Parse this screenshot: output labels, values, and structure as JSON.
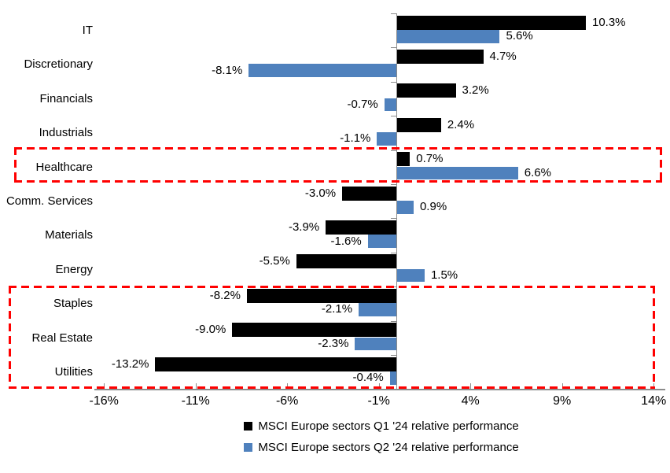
{
  "chart_data": {
    "type": "bar",
    "orientation": "horizontal",
    "title": "",
    "categories": [
      "IT",
      "Discretionary",
      "Financials",
      "Industrials",
      "Healthcare",
      "Comm. Services",
      "Materials",
      "Energy",
      "Staples",
      "Real Estate",
      "Utilities"
    ],
    "series": [
      {
        "name": "MSCI Europe sectors Q1 '24 relative performance",
        "color": "#000000",
        "values": [
          10.3,
          4.7,
          3.2,
          2.4,
          0.7,
          -3.0,
          -3.9,
          -5.5,
          -8.2,
          -9.0,
          -13.2
        ],
        "labels": [
          "10.3%",
          "4.7%",
          "3.2%",
          "2.4%",
          "0.7%",
          "-3.0%",
          "-3.9%",
          "-5.5%",
          "-8.2%",
          "-9.0%",
          "-13.2%"
        ]
      },
      {
        "name": "MSCI Europe sectors Q2 '24 relative performance",
        "color": "#4F81BD",
        "values": [
          5.6,
          -8.1,
          -0.7,
          -1.1,
          6.6,
          0.9,
          -1.6,
          1.5,
          -2.1,
          -2.3,
          -0.4
        ],
        "labels": [
          "5.6%",
          "-8.1%",
          "-0.7%",
          "-1.1%",
          "6.6%",
          "0.9%",
          "-1.6%",
          "1.5%",
          "-2.1%",
          "-2.3%",
          "-0.4%"
        ]
      }
    ],
    "x_axis": {
      "tick_labels": [
        "-16%",
        "-11%",
        "-6%",
        "-1%",
        "4%",
        "9%",
        "14%"
      ],
      "tick_values": [
        -16,
        -11,
        -6,
        -1,
        4,
        9,
        14
      ],
      "range": [
        -16,
        14
      ],
      "grid": false
    },
    "legend_position": "bottom",
    "data_labels": true
  },
  "annotations": {
    "highlight_color": "#FF0000",
    "boxes": [
      {
        "name": "healthcare",
        "rows": [
          "Healthcare"
        ]
      },
      {
        "name": "defensive-sectors",
        "rows": [
          "Staples",
          "Real Estate",
          "Utilities"
        ]
      }
    ]
  },
  "colors": {
    "axis": "#8C8C8C",
    "background": "#FFFFFF",
    "text": "#000000"
  }
}
